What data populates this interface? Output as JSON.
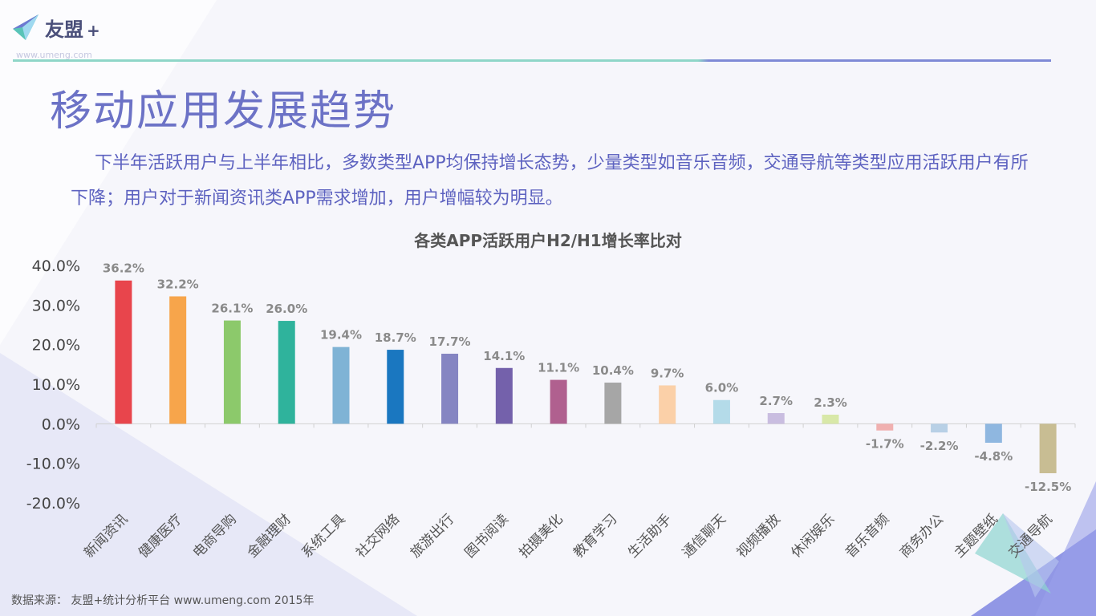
{
  "header": {
    "logo_text": "友盟",
    "logo_plus": "+",
    "logo_url": "www.umeng.com"
  },
  "page_title": "移动应用发展趋势",
  "description": "下半年活跃用户与上半年相比，多数类型APP均保持增长态势，少量类型如音乐音频，交通导航等类型应用活跃用户有所下降；用户对于新闻资讯类APP需求增加，用户增幅较为明显。",
  "source": "数据来源： 友盟+统计分析平台 www.umeng.com 2015年",
  "colors": {
    "accent": "#6c72c6",
    "line_left": "#8fd6c8",
    "line_right": "#7f8ad6"
  },
  "chart_data": {
    "type": "bar",
    "title": "各类APP活跃用户H2/H1增长率比对",
    "xlabel": "",
    "ylabel": "",
    "ylim": [
      -20,
      40
    ],
    "yticks": [
      40,
      30,
      20,
      10,
      0,
      -10,
      -20
    ],
    "ytick_labels": [
      "40.0%",
      "30.0%",
      "20.0%",
      "10.0%",
      "0.0%",
      "-10.0%",
      "-20.0%"
    ],
    "categories": [
      "新闻资讯",
      "健康医疗",
      "电商导购",
      "金融理财",
      "系统工具",
      "社交网络",
      "旅游出行",
      "图书阅读",
      "拍摄美化",
      "教育学习",
      "生活助手",
      "通信聊天",
      "视频播放",
      "休闲娱乐",
      "音乐音频",
      "商务办公",
      "主题壁纸",
      "交通导航"
    ],
    "values": [
      36.2,
      32.2,
      26.1,
      26.0,
      19.4,
      18.7,
      17.7,
      14.1,
      11.1,
      10.4,
      9.7,
      6.0,
      2.7,
      2.3,
      -1.7,
      -2.2,
      -4.8,
      -12.5
    ],
    "value_labels": [
      "36.2%",
      "32.2%",
      "26.1%",
      "26.0%",
      "19.4%",
      "18.7%",
      "17.7%",
      "14.1%",
      "11.1%",
      "10.4%",
      "9.7%",
      "6.0%",
      "2.7%",
      "2.3%",
      "-1.7%",
      "-2.2%",
      "-4.8%",
      "-12.5%"
    ],
    "bar_colors": [
      "#e8454c",
      "#f7a54b",
      "#8cc96b",
      "#2fb39c",
      "#7fb3d5",
      "#1a77c0",
      "#8585c2",
      "#7461ab",
      "#b0608f",
      "#a6a6a6",
      "#fbd0a8",
      "#b4dbe9",
      "#c9bde0",
      "#d8e8a8",
      "#f0b0b0",
      "#b8d0e6",
      "#8fb7e0",
      "#c8bd93"
    ],
    "grid": false
  }
}
